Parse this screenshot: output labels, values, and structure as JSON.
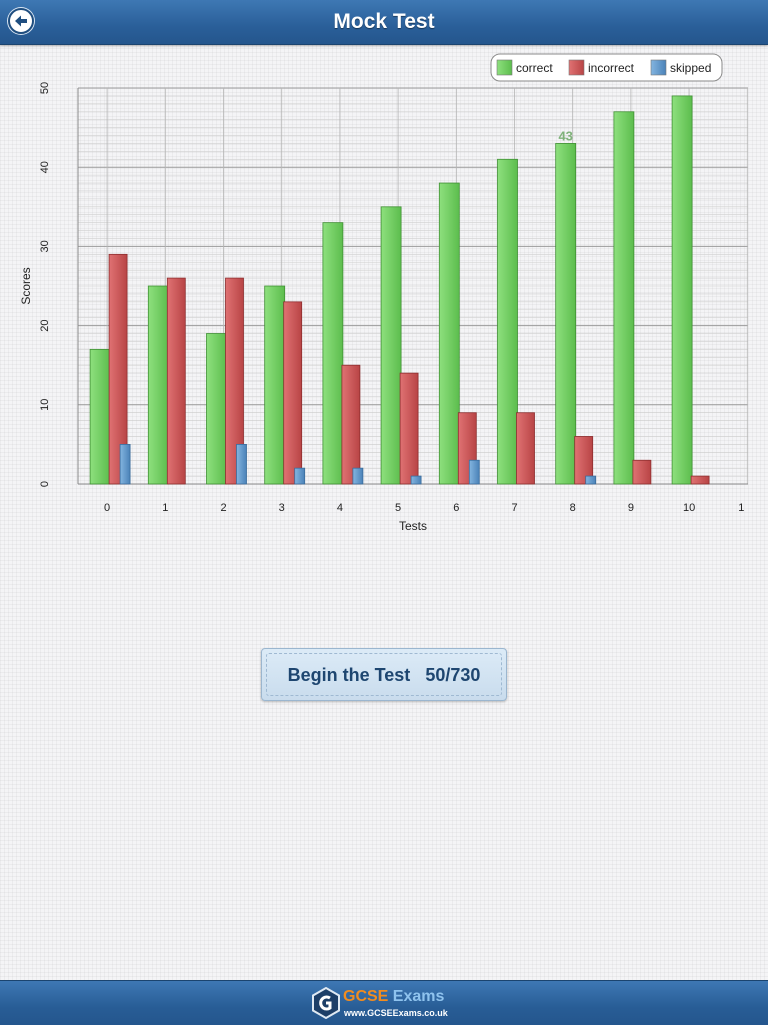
{
  "header": {
    "title": "Mock Test",
    "back_icon": "arrow-left-icon"
  },
  "chart_data": {
    "type": "bar",
    "categories": [
      "0",
      "1",
      "2",
      "3",
      "4",
      "5",
      "6",
      "7",
      "8",
      "9",
      "10"
    ],
    "extra_x_tick": "1",
    "series": [
      {
        "name": "correct",
        "color": "#6dcc5e",
        "values": [
          17,
          25,
          19,
          25,
          33,
          35,
          38,
          41,
          43,
          47,
          49
        ]
      },
      {
        "name": "incorrect",
        "color": "#cd5657",
        "values": [
          29,
          26,
          26,
          23,
          15,
          14,
          9,
          9,
          6,
          3,
          1
        ]
      },
      {
        "name": "skipped",
        "color": "#5b95c9",
        "values": [
          5,
          0,
          5,
          2,
          2,
          1,
          3,
          0,
          1,
          0,
          0
        ]
      }
    ],
    "xlabel": "Tests",
    "ylabel": "Scores",
    "ylim": [
      0,
      50
    ],
    "yticks": [
      0,
      10,
      20,
      30,
      40,
      50
    ],
    "grid": true,
    "legend": "top-right",
    "annotation": {
      "series": "correct",
      "category": "8",
      "text": "43"
    }
  },
  "begin_button": {
    "label": "Begin the Test",
    "progress": "50/730"
  },
  "footer": {
    "logo_brand": "GCSE",
    "logo_word": "Exams",
    "logo_url": "www.GCSEExams.co.uk",
    "logo_icon": "gcse-hexagon-logo-icon"
  }
}
